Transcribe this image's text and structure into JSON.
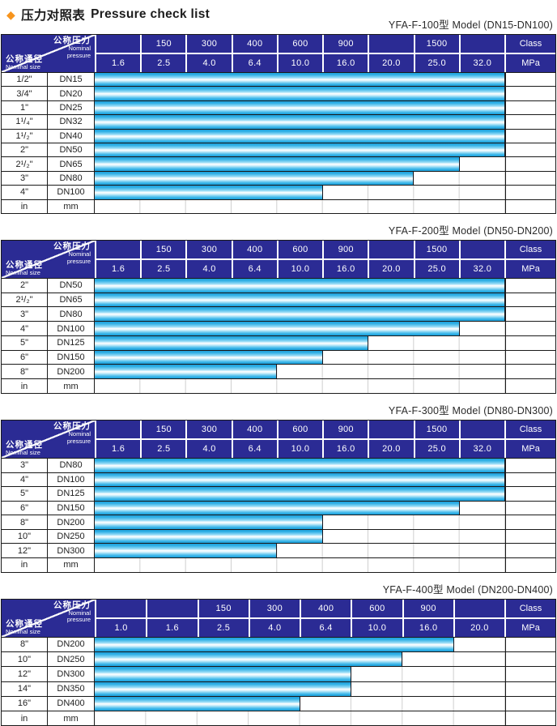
{
  "title": {
    "diamond": "◆",
    "zh": "压力对照表",
    "en": "Pressure check list"
  },
  "colors": {
    "header_navy": "#2B2B94",
    "bar_cyan": "#29ACE3",
    "bar_highlight": "#FFFFFF",
    "diamond_orange": "#F7941D",
    "grid_black": "#1A1A1A",
    "grid_faint": "#CFCFCF"
  },
  "common": {
    "nominal_pressure_zh": "公称压力",
    "nominal_pressure_en": "Nominal pressure",
    "nominal_size_zh": "公称通径",
    "nominal_size_en": "Nominal size",
    "class_label": "Class",
    "mpa_label": "MPa",
    "in_label": "in",
    "mm_label": "mm"
  },
  "tables": [
    {
      "caption": "YFA-F-100型  Model (DN15-DN100)",
      "class_cells": [
        "",
        "150",
        "300",
        "400",
        "600",
        "900",
        "",
        "1500",
        ""
      ],
      "mpa_cells": [
        "1.6",
        "2.5",
        "4.0",
        "6.4",
        "10.0",
        "16.0",
        "20.0",
        "25.0",
        "32.0"
      ],
      "rows": [
        {
          "size": "1/2\"",
          "dn": "DN15",
          "cols": 9,
          "max_mpa": "32.0"
        },
        {
          "size": "3/4\"",
          "dn": "DN20",
          "cols": 9,
          "max_mpa": "32.0"
        },
        {
          "size": "1\"",
          "dn": "DN25",
          "cols": 9,
          "max_mpa": "32.0"
        },
        {
          "size": "1¹/₄\"",
          "dn": "DN32",
          "cols": 9,
          "max_mpa": "32.0"
        },
        {
          "size": "1¹/₂\"",
          "dn": "DN40",
          "cols": 9,
          "max_mpa": "32.0"
        },
        {
          "size": "2\"",
          "dn": "DN50",
          "cols": 9,
          "max_mpa": "32.0"
        },
        {
          "size": "2¹/₂\"",
          "dn": "DN65",
          "cols": 8,
          "max_mpa": "25.0"
        },
        {
          "size": "3\"",
          "dn": "DN80",
          "cols": 7,
          "max_mpa": "20.0"
        },
        {
          "size": "4\"",
          "dn": "DN100",
          "cols": 5,
          "max_mpa": "10.0"
        }
      ]
    },
    {
      "caption": "YFA-F-200型  Model (DN50-DN200)",
      "class_cells": [
        "",
        "150",
        "300",
        "400",
        "600",
        "900",
        "",
        "1500",
        ""
      ],
      "mpa_cells": [
        "1.6",
        "2.5",
        "4.0",
        "6.4",
        "10.0",
        "16.0",
        "20.0",
        "25.0",
        "32.0"
      ],
      "rows": [
        {
          "size": "2\"",
          "dn": "DN50",
          "cols": 9,
          "max_mpa": "32.0"
        },
        {
          "size": "2¹/₂\"",
          "dn": "DN65",
          "cols": 9,
          "max_mpa": "32.0"
        },
        {
          "size": "3\"",
          "dn": "DN80",
          "cols": 9,
          "max_mpa": "32.0"
        },
        {
          "size": "4\"",
          "dn": "DN100",
          "cols": 8,
          "max_mpa": "25.0"
        },
        {
          "size": "5\"",
          "dn": "DN125",
          "cols": 6,
          "max_mpa": "16.0"
        },
        {
          "size": "6\"",
          "dn": "DN150",
          "cols": 5,
          "max_mpa": "10.0"
        },
        {
          "size": "8\"",
          "dn": "DN200",
          "cols": 4,
          "max_mpa": "6.4"
        }
      ]
    },
    {
      "caption": "YFA-F-300型  Model (DN80-DN300)",
      "class_cells": [
        "",
        "150",
        "300",
        "400",
        "600",
        "900",
        "",
        "1500",
        ""
      ],
      "mpa_cells": [
        "1.6",
        "2.5",
        "4.0",
        "6.4",
        "10.0",
        "16.0",
        "20.0",
        "25.0",
        "32.0"
      ],
      "rows": [
        {
          "size": "3\"",
          "dn": "DN80",
          "cols": 9,
          "max_mpa": "32.0"
        },
        {
          "size": "4\"",
          "dn": "DN100",
          "cols": 9,
          "max_mpa": "32.0"
        },
        {
          "size": "5\"",
          "dn": "DN125",
          "cols": 9,
          "max_mpa": "32.0"
        },
        {
          "size": "6\"",
          "dn": "DN150",
          "cols": 8,
          "max_mpa": "25.0"
        },
        {
          "size": "8\"",
          "dn": "DN200",
          "cols": 5,
          "max_mpa": "10.0"
        },
        {
          "size": "10\"",
          "dn": "DN250",
          "cols": 5,
          "max_mpa": "10.0"
        },
        {
          "size": "12\"",
          "dn": "DN300",
          "cols": 4,
          "max_mpa": "6.4"
        }
      ]
    },
    {
      "caption": "YFA-F-400型  Model (DN200-DN400)",
      "class_cells": [
        "",
        "",
        "150",
        "300",
        "400",
        "600",
        "900",
        ""
      ],
      "mpa_cells": [
        "1.0",
        "1.6",
        "2.5",
        "4.0",
        "6.4",
        "10.0",
        "16.0",
        "20.0"
      ],
      "rows": [
        {
          "size": "8\"",
          "dn": "DN200",
          "cols": 7,
          "max_mpa": "16.0"
        },
        {
          "size": "10\"",
          "dn": "DN250",
          "cols": 6,
          "max_mpa": "10.0"
        },
        {
          "size": "12\"",
          "dn": "DN300",
          "cols": 5,
          "max_mpa": "6.4"
        },
        {
          "size": "14\"",
          "dn": "DN350",
          "cols": 5,
          "max_mpa": "6.4"
        },
        {
          "size": "16\"",
          "dn": "DN400",
          "cols": 4,
          "max_mpa": "4.0"
        }
      ]
    }
  ]
}
